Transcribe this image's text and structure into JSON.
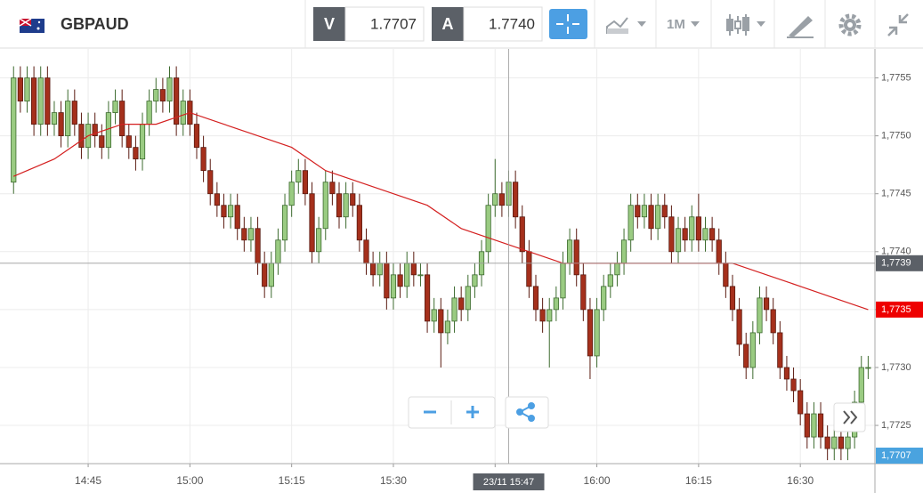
{
  "toolbar": {
    "symbol": "GBPAUD",
    "bid_label": "V",
    "bid": "1.7707",
    "ask_label": "A",
    "ask": "1.7740",
    "interval": "1M"
  },
  "chart_data": {
    "type": "candlestick",
    "x": [
      "14:34",
      "14:35",
      "14:36",
      "14:37",
      "14:38",
      "14:39",
      "14:40",
      "14:41",
      "14:42",
      "14:43",
      "14:44",
      "14:45",
      "14:46",
      "14:47",
      "14:48",
      "14:49",
      "14:50",
      "14:51",
      "14:52",
      "14:53",
      "14:54",
      "14:55",
      "14:56",
      "14:57",
      "14:58",
      "14:59",
      "15:00",
      "15:01",
      "15:02",
      "15:03",
      "15:04",
      "15:05",
      "15:06",
      "15:07",
      "15:08",
      "15:09",
      "15:10",
      "15:11",
      "15:12",
      "15:13",
      "15:14",
      "15:15",
      "15:16",
      "15:17",
      "15:18",
      "15:19",
      "15:20",
      "15:21",
      "15:22",
      "15:23",
      "15:24",
      "15:25",
      "15:26",
      "15:27",
      "15:28",
      "15:29",
      "15:30",
      "15:31",
      "15:32",
      "15:33",
      "15:34",
      "15:35",
      "15:36",
      "15:37",
      "15:38",
      "15:39",
      "15:40",
      "15:41",
      "15:42",
      "15:43",
      "15:44",
      "15:45",
      "15:46",
      "15:47",
      "15:48",
      "15:49",
      "15:50",
      "15:51",
      "15:52",
      "15:53",
      "15:54",
      "15:55",
      "15:56",
      "15:57",
      "15:58",
      "15:59",
      "16:00",
      "16:01",
      "16:02",
      "16:03",
      "16:04",
      "16:05",
      "16:06",
      "16:07",
      "16:08",
      "16:09",
      "16:10",
      "16:11",
      "16:12",
      "16:13",
      "16:14",
      "16:15",
      "16:16",
      "16:17",
      "16:18",
      "16:19",
      "16:20",
      "16:21",
      "16:22",
      "16:23",
      "16:24",
      "16:25",
      "16:26",
      "16:27",
      "16:28",
      "16:29",
      "16:30",
      "16:31",
      "16:32",
      "16:33",
      "16:34",
      "16:35",
      "16:36",
      "16:37",
      "16:38",
      "16:39",
      "16:40"
    ],
    "open": [
      1.7746,
      1.7755,
      1.7753,
      1.7755,
      1.7751,
      1.7755,
      1.7751,
      1.7752,
      1.775,
      1.7753,
      1.7751,
      1.7749,
      1.7751,
      1.775,
      1.7749,
      1.7752,
      1.7753,
      1.775,
      1.7749,
      1.7748,
      1.7751,
      1.7753,
      1.7754,
      1.7753,
      1.7755,
      1.7751,
      1.7753,
      1.7751,
      1.7749,
      1.7747,
      1.7745,
      1.7744,
      1.7743,
      1.7744,
      1.7742,
      1.7741,
      1.7742,
      1.7739,
      1.7737,
      1.7739,
      1.7741,
      1.7744,
      1.7746,
      1.7747,
      1.7745,
      1.774,
      1.7742,
      1.7746,
      1.7745,
      1.7743,
      1.7745,
      1.7744,
      1.7741,
      1.7739,
      1.7738,
      1.7739,
      1.7736,
      1.7738,
      1.7737,
      1.7739,
      1.7738,
      1.7738,
      1.7734,
      1.7735,
      1.7733,
      1.7734,
      1.7736,
      1.7735,
      1.7737,
      1.7738,
      1.774,
      1.7744,
      1.7745,
      1.7744,
      1.7746,
      1.7743,
      1.774,
      1.7737,
      1.7735,
      1.7734,
      1.7735,
      1.7736,
      1.7739,
      1.7741,
      1.7738,
      1.7735,
      1.7731,
      1.7735,
      1.7737,
      1.7738,
      1.7739,
      1.7741,
      1.7744,
      1.7743,
      1.7744,
      1.7742,
      1.7744,
      1.7743,
      1.774,
      1.7742,
      1.7741,
      1.7743,
      1.7741,
      1.7742,
      1.7741,
      1.7739,
      1.7737,
      1.7735,
      1.7732,
      1.773,
      1.7733,
      1.7736,
      1.7735,
      1.7733,
      1.773,
      1.7729,
      1.7728,
      1.7726,
      1.7724,
      1.7726,
      1.7724,
      1.7723,
      1.7724,
      1.7723,
      1.7724,
      1.7727,
      1.773
    ],
    "high": [
      1.7756,
      1.7756,
      1.7756,
      1.7756,
      1.7756,
      1.7756,
      1.7753,
      1.7753,
      1.7754,
      1.7754,
      1.7752,
      1.7752,
      1.7752,
      1.7751,
      1.7753,
      1.7754,
      1.7754,
      1.7751,
      1.775,
      1.7752,
      1.7754,
      1.7755,
      1.7755,
      1.7756,
      1.7756,
      1.7754,
      1.7754,
      1.7752,
      1.775,
      1.7748,
      1.7746,
      1.7745,
      1.7745,
      1.7745,
      1.7743,
      1.7743,
      1.7743,
      1.774,
      1.774,
      1.7742,
      1.7745,
      1.7747,
      1.7748,
      1.7748,
      1.7746,
      1.7743,
      1.7747,
      1.7747,
      1.7746,
      1.7746,
      1.7746,
      1.7745,
      1.7742,
      1.774,
      1.774,
      1.774,
      1.7739,
      1.7739,
      1.774,
      1.774,
      1.7739,
      1.7739,
      1.7736,
      1.7736,
      1.7735,
      1.7737,
      1.7737,
      1.7738,
      1.7739,
      1.7741,
      1.7745,
      1.7748,
      1.7746,
      1.7747,
      1.7747,
      1.7744,
      1.7741,
      1.7738,
      1.7736,
      1.7736,
      1.7737,
      1.774,
      1.7742,
      1.7742,
      1.7739,
      1.7736,
      1.7736,
      1.7738,
      1.7739,
      1.774,
      1.7742,
      1.7745,
      1.7745,
      1.7745,
      1.7745,
      1.7745,
      1.7745,
      1.7744,
      1.7743,
      1.7743,
      1.7744,
      1.7745,
      1.7743,
      1.7743,
      1.7742,
      1.774,
      1.7738,
      1.7736,
      1.7733,
      1.7734,
      1.7737,
      1.7737,
      1.7736,
      1.7734,
      1.7731,
      1.773,
      1.7729,
      1.7727,
      1.7727,
      1.7727,
      1.7725,
      1.7725,
      1.7725,
      1.7725,
      1.7728,
      1.7731,
      1.7731
    ],
    "low": [
      1.7745,
      1.7752,
      1.7752,
      1.775,
      1.775,
      1.775,
      1.775,
      1.7749,
      1.7749,
      1.775,
      1.7748,
      1.7748,
      1.7749,
      1.7748,
      1.7748,
      1.7751,
      1.7749,
      1.7748,
      1.7747,
      1.7747,
      1.775,
      1.7752,
      1.7752,
      1.7752,
      1.775,
      1.775,
      1.775,
      1.7748,
      1.7746,
      1.7744,
      1.7743,
      1.7742,
      1.7742,
      1.7741,
      1.774,
      1.774,
      1.7738,
      1.7736,
      1.7736,
      1.7738,
      1.774,
      1.7743,
      1.7745,
      1.7744,
      1.7739,
      1.7739,
      1.7741,
      1.7744,
      1.7742,
      1.7742,
      1.7743,
      1.774,
      1.7738,
      1.7737,
      1.7737,
      1.7735,
      1.7735,
      1.7736,
      1.7736,
      1.7737,
      1.7737,
      1.7733,
      1.7733,
      1.773,
      1.7732,
      1.7733,
      1.7734,
      1.7734,
      1.7736,
      1.7737,
      1.7739,
      1.7743,
      1.7743,
      1.7743,
      1.7742,
      1.7739,
      1.7736,
      1.7734,
      1.7733,
      1.773,
      1.7734,
      1.7735,
      1.7738,
      1.7737,
      1.7734,
      1.7729,
      1.773,
      1.7734,
      1.7736,
      1.7737,
      1.7738,
      1.774,
      1.7742,
      1.7742,
      1.7741,
      1.7741,
      1.7742,
      1.7739,
      1.7739,
      1.774,
      1.774,
      1.774,
      1.774,
      1.774,
      1.7738,
      1.7736,
      1.7734,
      1.7731,
      1.7729,
      1.7729,
      1.7732,
      1.7734,
      1.7732,
      1.7729,
      1.7728,
      1.7727,
      1.7725,
      1.7723,
      1.7723,
      1.7723,
      1.7722,
      1.7722,
      1.7722,
      1.7722,
      1.7723,
      1.7726,
      1.7729
    ],
    "close": [
      1.7755,
      1.7753,
      1.7755,
      1.7751,
      1.7755,
      1.7751,
      1.7752,
      1.775,
      1.7753,
      1.7751,
      1.7749,
      1.7751,
      1.775,
      1.7749,
      1.7752,
      1.7753,
      1.775,
      1.7749,
      1.7748,
      1.7751,
      1.7753,
      1.7754,
      1.7753,
      1.7755,
      1.7751,
      1.7753,
      1.7751,
      1.7749,
      1.7747,
      1.7745,
      1.7744,
      1.7743,
      1.7744,
      1.7742,
      1.7741,
      1.7742,
      1.7739,
      1.7737,
      1.7739,
      1.7741,
      1.7744,
      1.7746,
      1.7747,
      1.7745,
      1.774,
      1.7742,
      1.7746,
      1.7745,
      1.7743,
      1.7745,
      1.7744,
      1.7741,
      1.7739,
      1.7738,
      1.7739,
      1.7736,
      1.7738,
      1.7737,
      1.7739,
      1.7738,
      1.7738,
      1.7734,
      1.7735,
      1.7733,
      1.7734,
      1.7736,
      1.7735,
      1.7737,
      1.7738,
      1.774,
      1.7744,
      1.7745,
      1.7744,
      1.7746,
      1.7743,
      1.774,
      1.7737,
      1.7735,
      1.7734,
      1.7735,
      1.7736,
      1.7739,
      1.7741,
      1.7738,
      1.7735,
      1.7731,
      1.7735,
      1.7737,
      1.7738,
      1.7739,
      1.7741,
      1.7744,
      1.7743,
      1.7744,
      1.7742,
      1.7744,
      1.7743,
      1.774,
      1.7742,
      1.7741,
      1.7743,
      1.7741,
      1.7742,
      1.7741,
      1.7739,
      1.7737,
      1.7735,
      1.7732,
      1.773,
      1.7733,
      1.7736,
      1.7735,
      1.7733,
      1.773,
      1.7729,
      1.7728,
      1.7726,
      1.7724,
      1.7726,
      1.7724,
      1.7723,
      1.7724,
      1.7723,
      1.7724,
      1.7727,
      1.773,
      1.773
    ],
    "up_color": "#9acb82",
    "down_color": "#a5301c",
    "ma": {
      "color": "#d42020",
      "x": [
        "14:34",
        "14:40",
        "14:45",
        "14:50",
        "14:55",
        "15:00",
        "15:05",
        "15:10",
        "15:15",
        "15:20",
        "15:25",
        "15:30",
        "15:35",
        "15:40",
        "15:45",
        "15:50",
        "15:55",
        "16:00",
        "16:05",
        "16:10",
        "16:15",
        "16:20",
        "16:25",
        "16:30",
        "16:35",
        "16:40"
      ],
      "values": [
        1.77465,
        1.7748,
        1.775,
        1.7751,
        1.7751,
        1.7752,
        1.7751,
        1.775,
        1.7749,
        1.7747,
        1.7746,
        1.7745,
        1.7744,
        1.7742,
        1.7741,
        1.774,
        1.7739,
        1.7739,
        1.7739,
        1.7739,
        1.7739,
        1.7739,
        1.7738,
        1.7737,
        1.7736,
        1.7735
      ],
      "last_label": {
        "value": 1.7735,
        "label": "1,7735"
      }
    },
    "xlim": [
      "14:32",
      "16:41"
    ],
    "xticks": [
      "14:45",
      "15:00",
      "15:15",
      "15:30",
      "15:45",
      "16:00",
      "16:15",
      "16:30"
    ],
    "ylim": [
      1.77217,
      1.77575
    ],
    "yticks": [
      {
        "value": 1.7725,
        "label": "1,7725"
      },
      {
        "value": 1.773,
        "label": "1,7730"
      },
      {
        "value": 1.7735,
        "label": "1,7735"
      },
      {
        "value": 1.774,
        "label": "1,7740"
      },
      {
        "value": 1.7745,
        "label": "1,7745"
      },
      {
        "value": 1.775,
        "label": "1,7750"
      },
      {
        "value": 1.7755,
        "label": "1,7755"
      }
    ],
    "grid": true,
    "crosshair": {
      "x_label": "23/11 15:47",
      "y": {
        "value": 1.7739,
        "label": "1,7739"
      }
    },
    "price_label": "1,7707"
  }
}
